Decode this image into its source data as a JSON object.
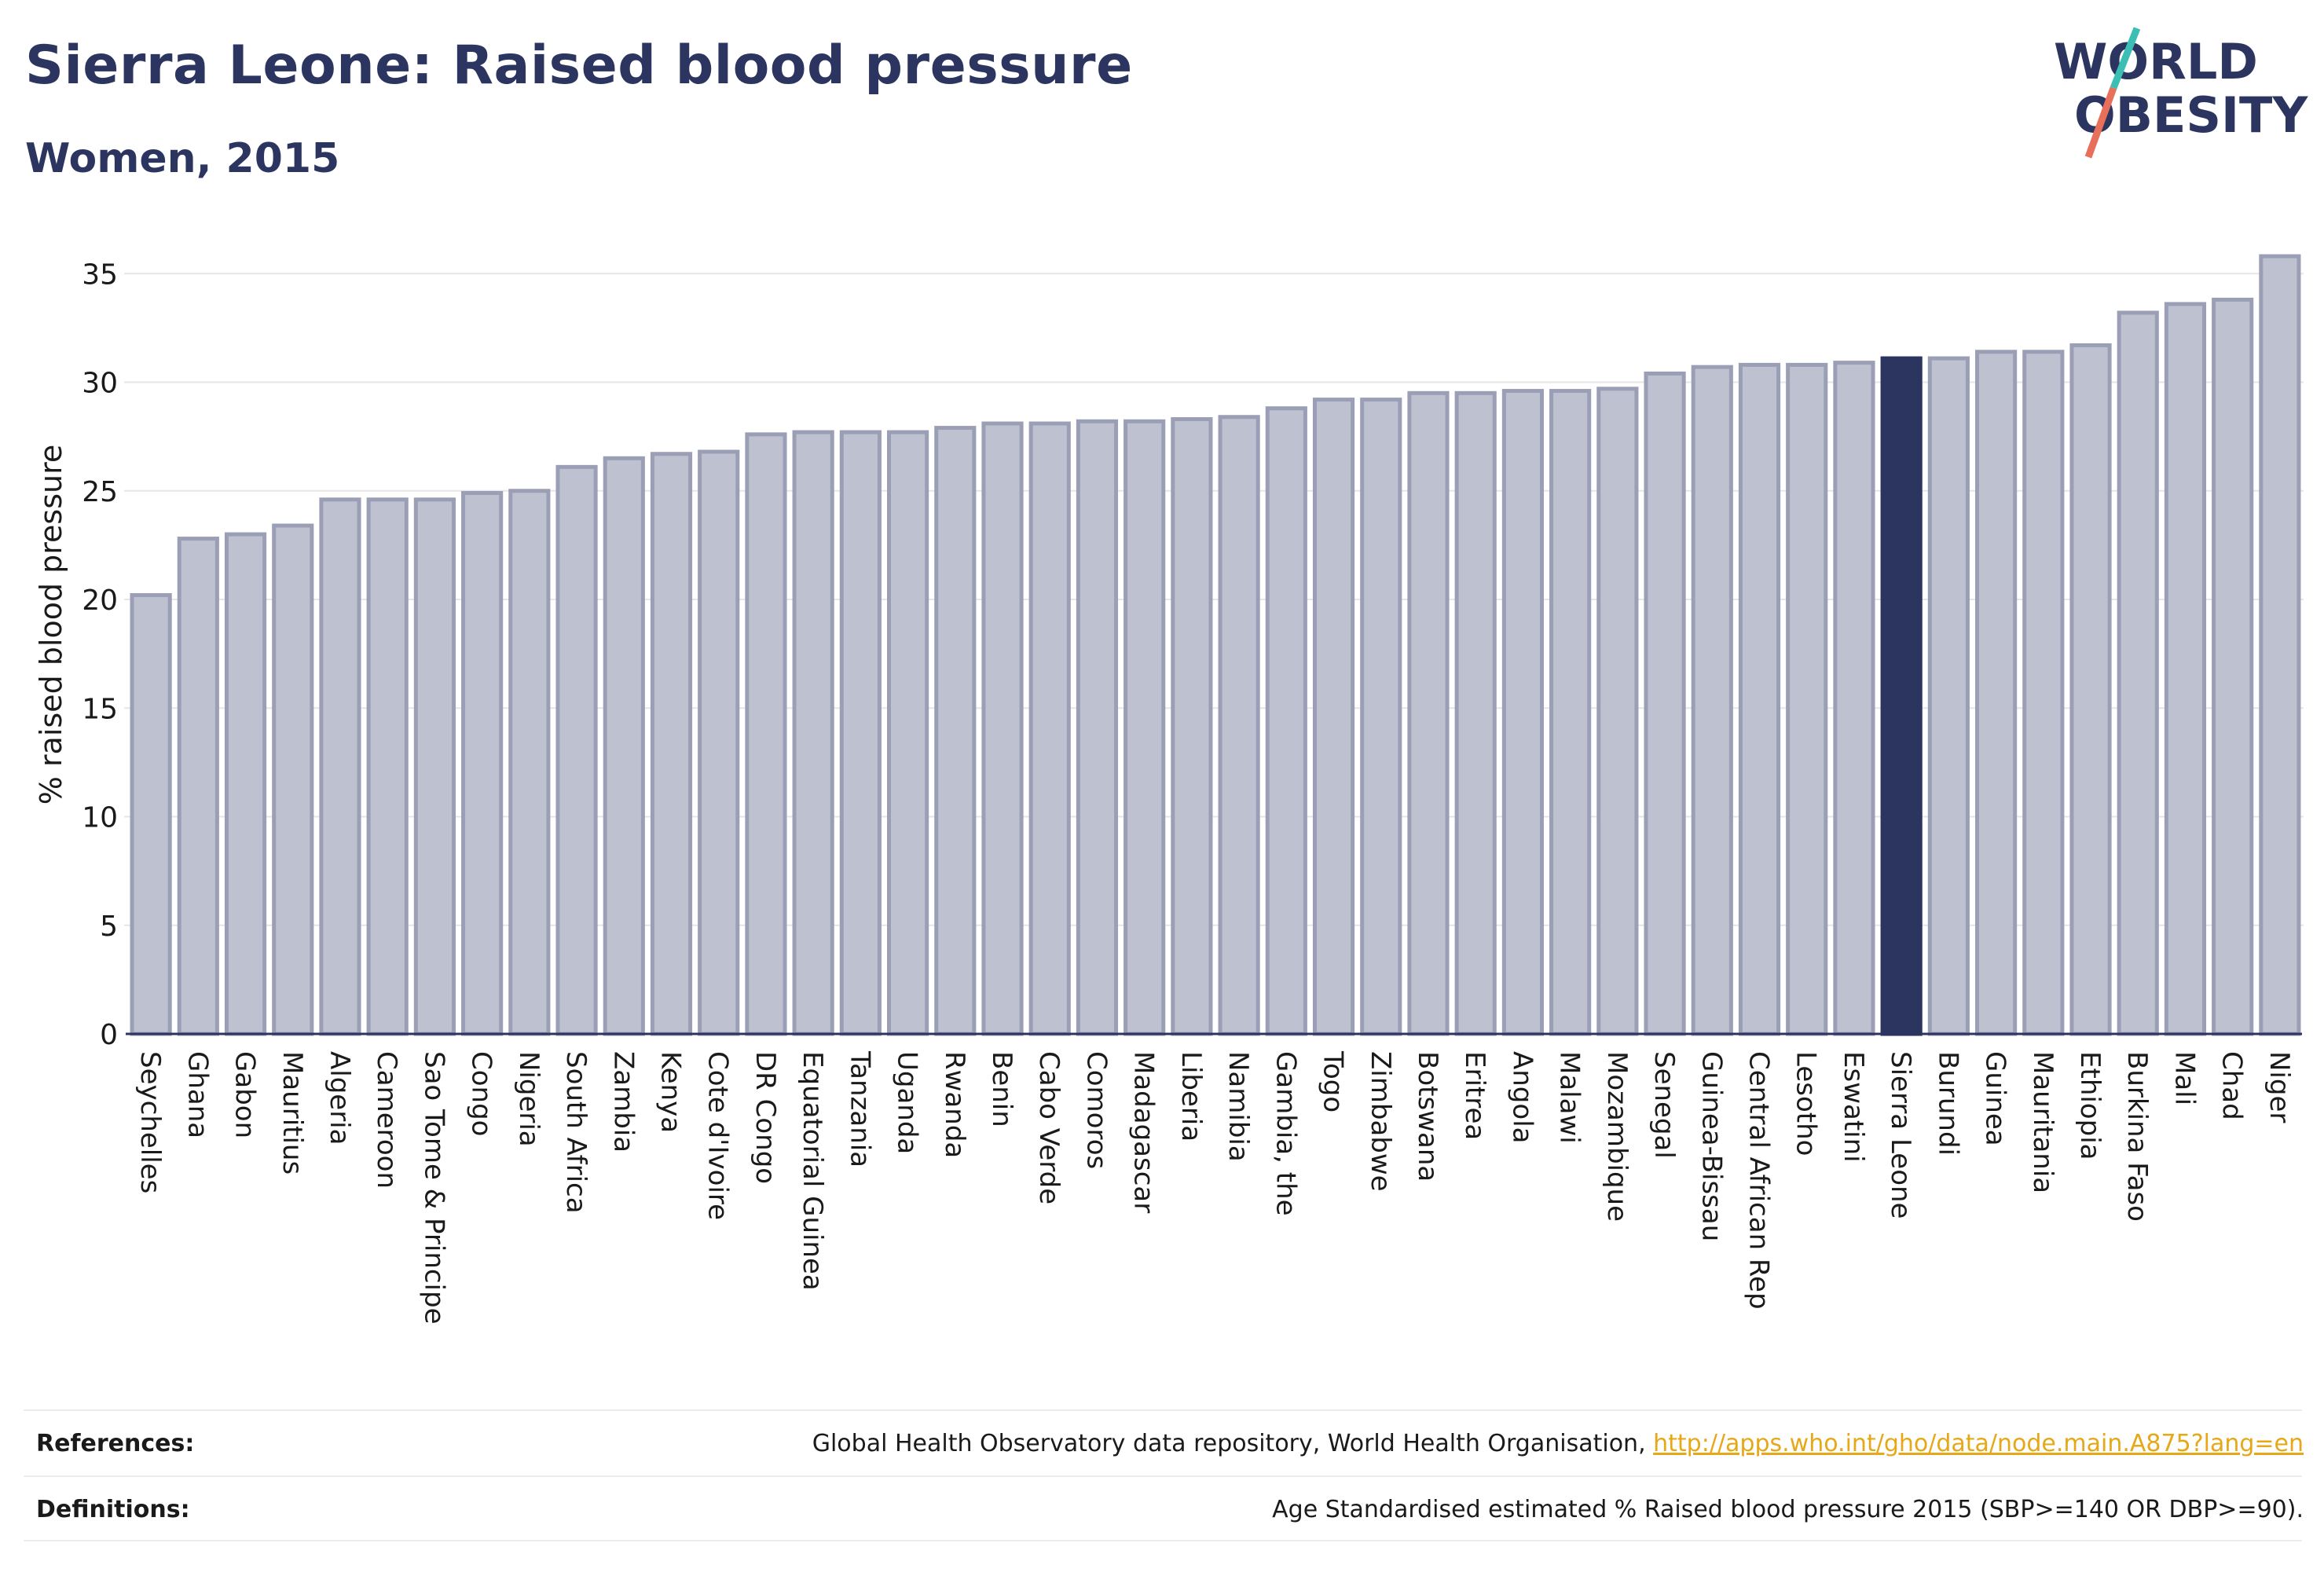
{
  "header": {
    "title": "Sierra Leone: Raised blood pressure",
    "subtitle": "Women, 2015"
  },
  "logo": {
    "line1": "WORLD",
    "line2": "OBESITY",
    "colors": {
      "text": "#2b3560",
      "slash_teal": "#3bbfb5",
      "slash_coral": "#e8705a"
    }
  },
  "colors": {
    "bar_fill": "#bec1cf",
    "bar_stroke": "#9a9fb6",
    "highlight_fill": "#2b3560",
    "grid": "#e6e6e6",
    "axis_text": "#1a1a1a"
  },
  "chart_data": {
    "type": "bar",
    "ylabel": "% raised blood pressure",
    "xlabel": "",
    "ylim": [
      0,
      37
    ],
    "yticks": [
      0,
      5,
      10,
      15,
      20,
      25,
      30,
      35
    ],
    "grid": true,
    "highlight": "Sierra Leone",
    "categories": [
      "Seychelles",
      "Ghana",
      "Gabon",
      "Mauritius",
      "Algeria",
      "Cameroon",
      "Sao Tome & Principe",
      "Congo",
      "Nigeria",
      "South Africa",
      "Zambia",
      "Kenya",
      "Cote d'Ivoire",
      "DR Congo",
      "Equatorial Guinea",
      "Tanzania",
      "Uganda",
      "Rwanda",
      "Benin",
      "Cabo Verde",
      "Comoros",
      "Madagascar",
      "Liberia",
      "Namibia",
      "Gambia, the",
      "Togo",
      "Zimbabwe",
      "Botswana",
      "Eritrea",
      "Angola",
      "Malawi",
      "Mozambique",
      "Senegal",
      "Guinea-Bissau",
      "Central African Rep",
      "Lesotho",
      "Eswatini",
      "Sierra Leone",
      "Burundi",
      "Guinea",
      "Mauritania",
      "Ethiopia",
      "Burkina Faso",
      "Mali",
      "Chad",
      "Niger"
    ],
    "values": [
      20.2,
      22.8,
      23.0,
      23.4,
      24.6,
      24.6,
      24.6,
      24.9,
      25.0,
      26.1,
      26.5,
      26.7,
      26.8,
      27.6,
      27.7,
      27.7,
      27.7,
      27.9,
      28.1,
      28.1,
      28.2,
      28.2,
      28.3,
      28.4,
      28.8,
      29.2,
      29.2,
      29.5,
      29.5,
      29.6,
      29.6,
      29.7,
      30.4,
      30.7,
      30.8,
      30.8,
      30.9,
      31.1,
      31.1,
      31.4,
      31.4,
      31.7,
      33.2,
      33.6,
      33.8,
      35.8
    ]
  },
  "footer": {
    "references_label": "References:",
    "references_text": "Global Health Observatory data repository, World Health Organisation, ",
    "references_link": "http://apps.who.int/gho/data/node.main.A875?lang=en",
    "definitions_label": "Definitions:",
    "definitions_text": "Age Standardised estimated % Raised blood pressure 2015 (SBP>=140 OR DBP>=90)."
  }
}
